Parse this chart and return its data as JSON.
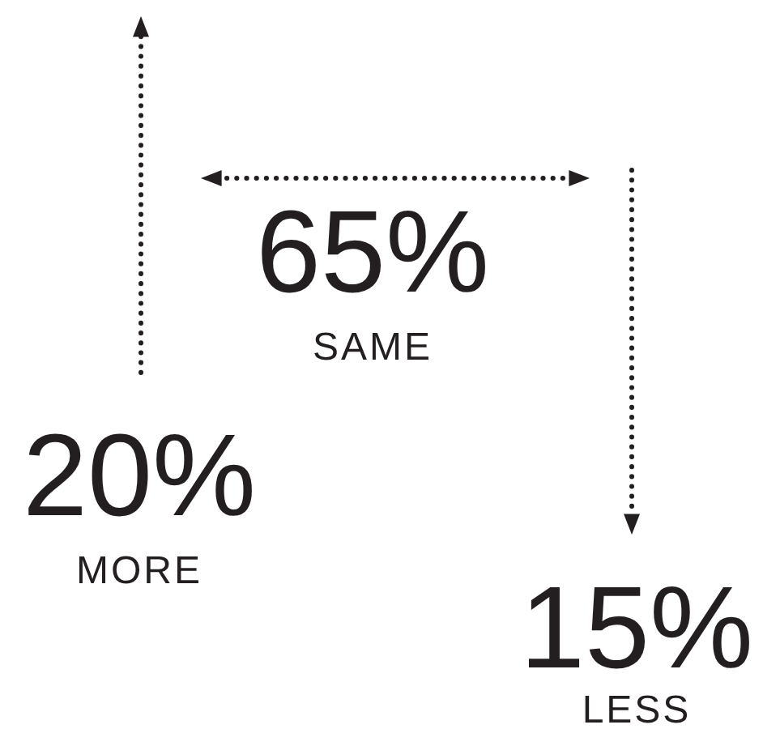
{
  "chart_data": {
    "type": "other",
    "categories": [
      "MORE",
      "SAME",
      "LESS"
    ],
    "values": [
      20,
      65,
      15
    ],
    "value_labels": [
      "20%",
      "65%",
      "15%"
    ]
  }
}
